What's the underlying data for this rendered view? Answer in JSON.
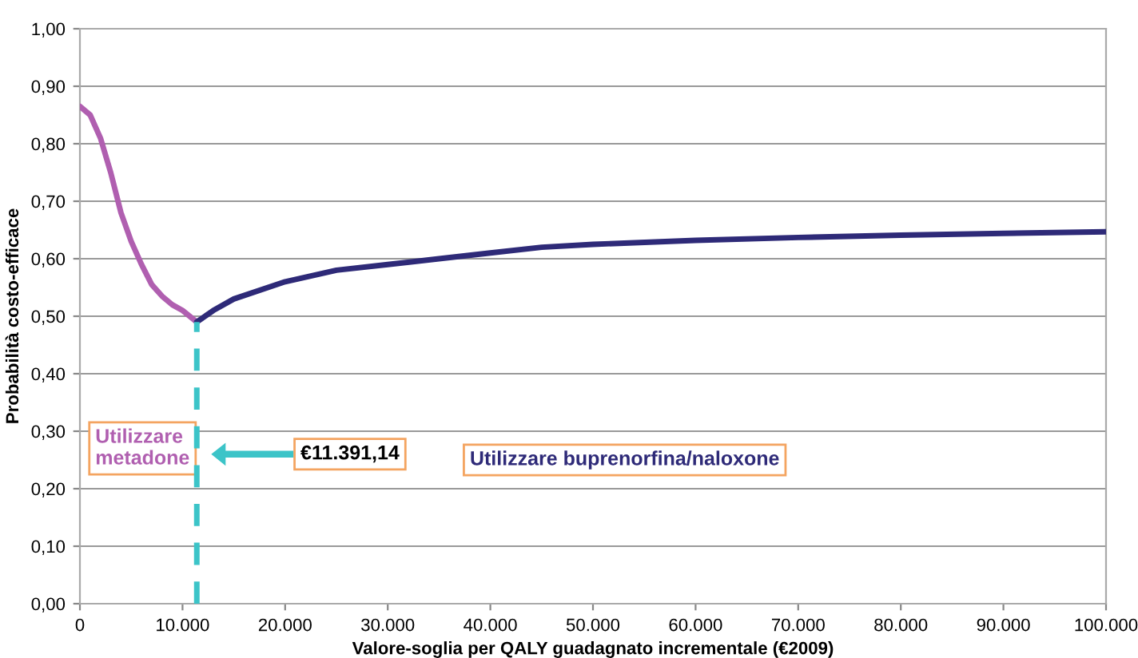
{
  "chart_data": {
    "type": "line",
    "xlabel": "Valore-soglia per QALY guadagnato incrementale (€2009)",
    "ylabel": "Probabilità costo-efficace",
    "series": [
      {
        "name": "Utilizzare\nmetadone",
        "color": "#b05fb0",
        "x": [
          0,
          1000,
          2000,
          3000,
          4000,
          5000,
          6000,
          7000,
          8000,
          9000,
          10000,
          11391.14
        ],
        "values": [
          0.865,
          0.85,
          0.81,
          0.75,
          0.68,
          0.63,
          0.59,
          0.555,
          0.535,
          0.52,
          0.51,
          0.49
        ]
      },
      {
        "name": "Utilizzare buprenorfina/naloxone",
        "color": "#2e2a78",
        "x": [
          11391.14,
          13000,
          15000,
          20000,
          25000,
          30000,
          35000,
          40000,
          45000,
          50000,
          60000,
          70000,
          80000,
          90000,
          100000
        ],
        "values": [
          0.49,
          0.51,
          0.53,
          0.56,
          0.58,
          0.59,
          0.6,
          0.61,
          0.62,
          0.625,
          0.632,
          0.637,
          0.641,
          0.644,
          0.647
        ]
      },
      {
        "color": "#3cc4c8",
        "line_style": "dashed",
        "x": [
          11391.14,
          11391.14
        ],
        "values": [
          0,
          0.49
        ]
      }
    ],
    "annotations": [
      "€11.391,14"
    ],
    "xlim": [
      0,
      100000
    ],
    "xticks": [
      0,
      {
        "value": 10000,
        "label": "10.000"
      },
      {
        "value": 20000,
        "label": "20.000"
      },
      {
        "value": 30000,
        "label": "30.000"
      },
      {
        "value": 40000,
        "label": "40.000"
      },
      {
        "value": 50000,
        "label": "50.000"
      },
      {
        "value": 60000,
        "label": "60.000"
      },
      {
        "value": 70000,
        "label": "70.000"
      },
      {
        "value": 80000,
        "label": "80.000"
      },
      {
        "value": 90000,
        "label": "90.000"
      },
      {
        "value": 100000,
        "label": "100.000"
      }
    ],
    "ylim": [
      0,
      1
    ],
    "yticks": [
      {
        "value": 0,
        "label": "0,00"
      },
      {
        "value": 0.1,
        "label": "0,10"
      },
      {
        "value": 0.2,
        "label": "0,20"
      },
      {
        "value": 0.3,
        "label": "0,30"
      },
      {
        "value": 0.4,
        "label": "0,40"
      },
      {
        "value": 0.5,
        "label": "0,50"
      },
      {
        "value": 0.6,
        "label": "0,60"
      },
      {
        "value": 0.7,
        "label": "0,70"
      },
      {
        "value": 0.8,
        "label": "0,80"
      },
      {
        "value": 0.9,
        "label": "0,90"
      },
      {
        "value": 1,
        "label": "1,00"
      }
    ],
    "grid": "y"
  }
}
